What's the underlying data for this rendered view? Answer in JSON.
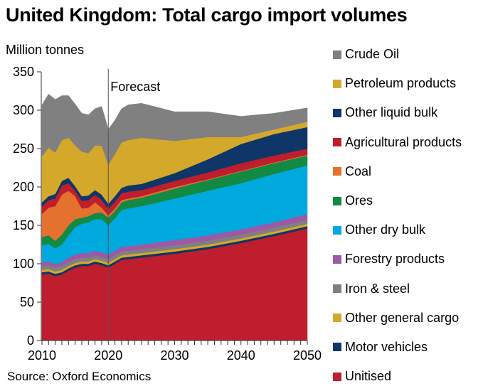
{
  "chart_data": {
    "type": "area",
    "stacked": true,
    "title": "United Kingdom: Total cargo import volumes",
    "ylabel": "Million tonnes",
    "xlabel": "",
    "source": "Source: Oxford Economics",
    "annotation": "Forecast",
    "forecast_start_year": 2020,
    "xlim": [
      2010,
      2050
    ],
    "ylim": [
      0,
      350
    ],
    "yticks": [
      0,
      50,
      100,
      150,
      200,
      250,
      300,
      350
    ],
    "xticks": [
      2010,
      2020,
      2030,
      2040,
      2050
    ],
    "legend_position": "right",
    "grid": false,
    "x": [
      2010,
      2011,
      2012,
      2013,
      2014,
      2015,
      2016,
      2017,
      2018,
      2019,
      2020,
      2021,
      2022,
      2023,
      2025,
      2030,
      2035,
      2040,
      2045,
      2050
    ],
    "series": [
      {
        "name": "Unitised",
        "color": "#BE1E2D",
        "values": [
          86,
          87,
          84,
          86,
          91,
          95,
          97,
          97,
          100,
          98,
          95,
          100,
          105,
          106,
          108,
          113,
          119,
          127,
          136,
          146
        ]
      },
      {
        "name": "Motor vehicles",
        "color": "#0E3668",
        "values": [
          3,
          3,
          3,
          3,
          3,
          3,
          3,
          3,
          3,
          3,
          3,
          3,
          3,
          3,
          3,
          3,
          3,
          3,
          3,
          3
        ]
      },
      {
        "name": "Other general cargo",
        "color": "#D4A82A",
        "values": [
          3,
          3,
          3,
          3,
          3,
          3,
          3,
          3,
          3,
          3,
          3,
          3,
          3,
          3,
          3,
          3,
          3,
          3,
          3,
          3
        ]
      },
      {
        "name": "Iron & steel",
        "color": "#808080",
        "values": [
          5,
          5,
          5,
          5,
          5,
          5,
          5,
          5,
          5,
          5,
          5,
          5,
          5,
          5,
          5,
          5,
          5,
          5,
          5,
          5
        ]
      },
      {
        "name": "Forestry products",
        "color": "#9B59A6",
        "values": [
          5,
          5,
          5,
          5,
          6,
          6,
          6,
          6,
          6,
          6,
          6,
          6,
          6,
          6,
          6,
          7,
          7,
          7,
          7,
          8
        ]
      },
      {
        "name": "Other dry bulk",
        "color": "#00A9DE",
        "values": [
          22,
          23,
          20,
          23,
          29,
          36,
          38,
          40,
          41,
          43,
          38,
          42,
          48,
          49,
          50,
          54,
          58,
          60,
          63,
          63
        ]
      },
      {
        "name": "Ores",
        "color": "#138A43",
        "values": [
          11,
          11,
          10,
          13,
          13,
          10,
          8,
          8,
          8,
          9,
          10,
          10,
          10,
          11,
          11,
          13,
          14,
          15,
          14,
          13
        ]
      },
      {
        "name": "Coal",
        "color": "#E4712E",
        "values": [
          30,
          36,
          45,
          52,
          45,
          30,
          12,
          11,
          14,
          6,
          3,
          3,
          3,
          2,
          2,
          2,
          1,
          1,
          1,
          1
        ]
      },
      {
        "name": "Agricultural products",
        "color": "#BE1E2D",
        "values": [
          10,
          10,
          10,
          12,
          10,
          7,
          10,
          10,
          10,
          10,
          9,
          9,
          9,
          9,
          8,
          8,
          9,
          10,
          9,
          8
        ]
      },
      {
        "name": "Other liquid bulk",
        "color": "#0E3668",
        "values": [
          5,
          5,
          6,
          6,
          7,
          6,
          6,
          6,
          6,
          7,
          6,
          7,
          7,
          8,
          8,
          10,
          17,
          25,
          28,
          28
        ]
      },
      {
        "name": "Petroleum products",
        "color": "#D4A82A",
        "values": [
          60,
          63,
          54,
          53,
          52,
          53,
          58,
          55,
          58,
          64,
          51,
          55,
          59,
          59,
          60,
          42,
          29,
          9,
          6,
          7
        ]
      },
      {
        "name": "Crude Oil",
        "color": "#808080",
        "values": [
          67,
          70,
          69,
          58,
          55,
          54,
          50,
          50,
          48,
          51,
          46,
          44,
          44,
          46,
          45,
          38,
          33,
          27,
          21,
          18
        ]
      }
    ]
  },
  "legend": {
    "items": [
      {
        "label": "Crude Oil",
        "color": "#808080"
      },
      {
        "label": "Petroleum products",
        "color": "#D4A82A"
      },
      {
        "label": "Other liquid bulk",
        "color": "#0E3668"
      },
      {
        "label": "Agricultural products",
        "color": "#BE1E2D"
      },
      {
        "label": "Coal",
        "color": "#E4712E"
      },
      {
        "label": "Ores",
        "color": "#138A43"
      },
      {
        "label": "Other dry bulk",
        "color": "#00A9DE"
      },
      {
        "label": "Forestry products",
        "color": "#9B59A6"
      },
      {
        "label": "Iron & steel",
        "color": "#808080"
      },
      {
        "label": "Other general cargo",
        "color": "#D4A82A"
      },
      {
        "label": "Motor vehicles",
        "color": "#0E3668"
      },
      {
        "label": "Unitised",
        "color": "#BE1E2D"
      }
    ]
  }
}
